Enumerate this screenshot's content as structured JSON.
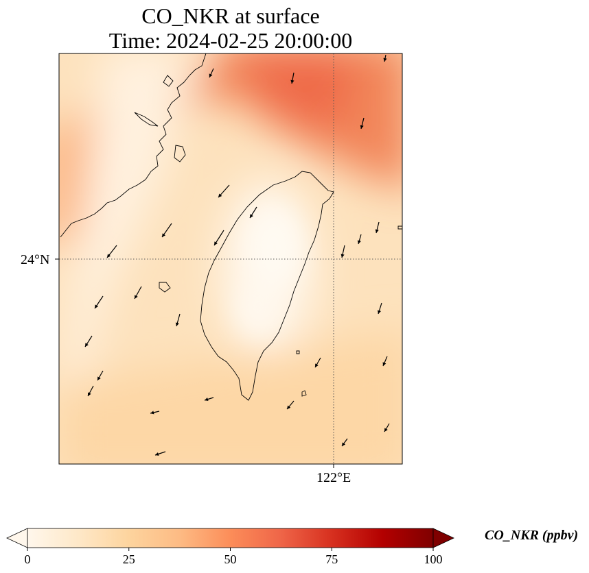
{
  "title": {
    "line1": "CO_NKR at surface",
    "line2": "Time: 2024-02-25 20:00:00"
  },
  "axes": {
    "lat_label": "24°N",
    "lon_label": "122°E"
  },
  "map": {
    "variable": "CO_NKR",
    "level": "surface",
    "lat_gridline": 24,
    "lon_gridline": 122,
    "gridline_style": "dotted",
    "coastline_color": "#000000",
    "vector_field": "wind arrows",
    "concentration_field": [
      {
        "region": "northeast plume (Taiwan Strait north / East China Sea)",
        "level": 55
      },
      {
        "region": "northwest coast of mainland",
        "level": 35
      },
      {
        "region": "central Taiwan mountains",
        "level": 3
      },
      {
        "region": "western strait",
        "level": 15
      },
      {
        "region": "southern waters",
        "level": 22
      }
    ]
  },
  "colorbar": {
    "label": "CO_NKR (ppbv)",
    "ticks": [
      "0",
      "25",
      "50",
      "75",
      "100"
    ],
    "min": 0,
    "max": 100,
    "extend": "both",
    "colormap": "OrRd",
    "colors": [
      "#fff7ec",
      "#fee8c8",
      "#fdd49e",
      "#fdbb84",
      "#fc8d59",
      "#ef6548",
      "#d7301f",
      "#b30000",
      "#7f0000"
    ]
  }
}
